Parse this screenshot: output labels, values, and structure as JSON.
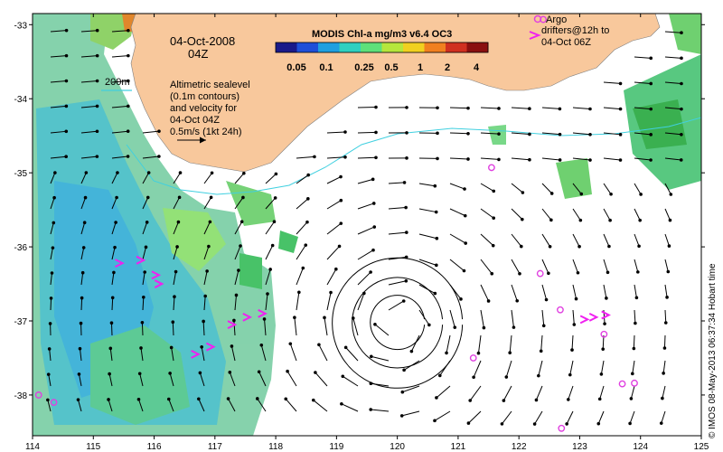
{
  "title": "MODIS Chl-a mg/m3 v6.4 OC3",
  "date_label": "04-Oct-2008",
  "time_label": "04Z",
  "isobath_label": "200m",
  "altimetry_note": [
    "Altimetric sealevel",
    "(0.1m contours)",
    "and velocity for",
    "04-Oct 04Z",
    "0.5m/s (1kt 24h)"
  ],
  "argo_label": "Argo",
  "drifters_note": [
    "drifters@12h to",
    "04-Oct 06Z"
  ],
  "credit": "© IMOS 08-May-2013 06:37:34 Hobart time",
  "colorbar": {
    "ticks": [
      "0.05",
      "0.1",
      "0.25",
      "0.5",
      "1",
      "2",
      "4"
    ],
    "colors": [
      "#1a1a8a",
      "#1f4fd8",
      "#1f9fe0",
      "#2fd0c0",
      "#5ee07a",
      "#b6e63c",
      "#f0d020",
      "#f08020",
      "#d03020",
      "#8a1010"
    ]
  },
  "colors": {
    "land": "#f8c89c",
    "ocean": "#ffffff",
    "isobath": "#40d0e0",
    "argo": "#e040e0",
    "drifter": "#f020f0"
  },
  "axes": {
    "x_ticks": [
      "114",
      "115",
      "116",
      "117",
      "118",
      "119",
      "120",
      "121",
      "122",
      "123",
      "124",
      "125"
    ],
    "y_ticks": [
      "-33",
      "-34",
      "-35",
      "-36",
      "-37",
      "-38"
    ],
    "lon_range": [
      114,
      125
    ],
    "lat_range": [
      -38.55,
      -32.85
    ]
  },
  "argo_floats": [
    {
      "lon": 121.55,
      "lat": -34.93
    },
    {
      "lon": 122.35,
      "lat": -36.36
    },
    {
      "lon": 122.68,
      "lat": -36.85
    },
    {
      "lon": 123.4,
      "lat": -37.18
    },
    {
      "lon": 121.25,
      "lat": -37.5
    },
    {
      "lon": 123.7,
      "lat": -37.85
    },
    {
      "lon": 123.9,
      "lat": -37.84
    },
    {
      "lon": 122.7,
      "lat": -38.45
    },
    {
      "lon": 114.1,
      "lat": -38.0
    },
    {
      "lon": 114.35,
      "lat": -38.1
    },
    {
      "lon": 122.4,
      "lat": -32.93
    }
  ],
  "drifter_tracks": [
    {
      "lon": 115.8,
      "lat": -36.18
    },
    {
      "lon": 115.45,
      "lat": -36.22
    },
    {
      "lon": 116.1,
      "lat": -36.5
    },
    {
      "lon": 116.05,
      "lat": -36.38
    },
    {
      "lon": 116.95,
      "lat": -37.35
    },
    {
      "lon": 116.7,
      "lat": -37.45
    },
    {
      "lon": 117.3,
      "lat": -37.05
    },
    {
      "lon": 117.55,
      "lat": -36.95
    },
    {
      "lon": 117.8,
      "lat": -36.9
    },
    {
      "lon": 123.1,
      "lat": -36.98
    },
    {
      "lon": 123.25,
      "lat": -36.95
    },
    {
      "lon": 123.45,
      "lat": -36.92
    }
  ]
}
